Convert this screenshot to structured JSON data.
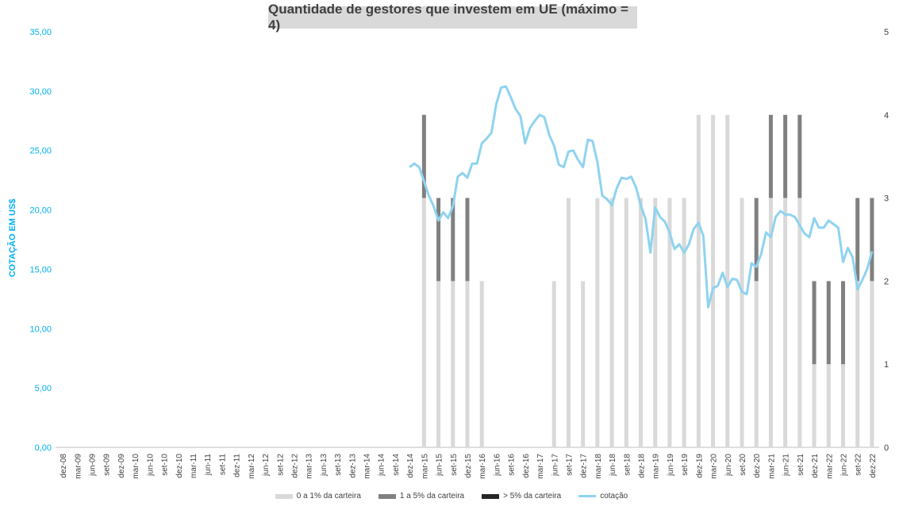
{
  "chart_data": {
    "type": "bar",
    "title": "Quantidade de gestores que investem em UE (máximo = 4)",
    "ylabel": "COTAÇÃO EM US$",
    "ylim_left": [
      0,
      35
    ],
    "ylim_right": [
      0,
      5
    ],
    "yticks_left": [
      "0,00",
      "5,00",
      "10,00",
      "15,00",
      "20,00",
      "25,00",
      "30,00",
      "35,00"
    ],
    "yticks_right": [
      "0",
      "1",
      "2",
      "3",
      "4",
      "5"
    ],
    "categories": [
      "dez-08",
      "mar-09",
      "jun-09",
      "set-09",
      "dez-09",
      "mar-10",
      "jun-10",
      "set-10",
      "dez-10",
      "mar-11",
      "jun-11",
      "set-11",
      "dez-11",
      "mar-12",
      "jun-12",
      "set-12",
      "dez-12",
      "mar-13",
      "jun-13",
      "set-13",
      "dez-13",
      "mar-14",
      "jun-14",
      "set-14",
      "dez-14",
      "mar-15",
      "jun-15",
      "set-15",
      "dez-15",
      "mar-16",
      "jun-16",
      "set-16",
      "dez-16",
      "mar-17",
      "jun-17",
      "set-17",
      "dez-17",
      "mar-18",
      "jun-18",
      "set-18",
      "dez-18",
      "mar-19",
      "jun-19",
      "set-19",
      "dez-19",
      "mar-20",
      "jun-20",
      "set-20",
      "dez-20",
      "mar-21",
      "jun-21",
      "set-21",
      "dez-21",
      "mar-22",
      "jun-22",
      "set-22",
      "dez-22"
    ],
    "series": [
      {
        "name": "0 a 1% da carteira",
        "color": "#d9d9d9",
        "values": [
          0,
          0,
          0,
          0,
          0,
          0,
          0,
          0,
          0,
          0,
          0,
          0,
          0,
          0,
          0,
          0,
          0,
          0,
          0,
          0,
          0,
          0,
          0,
          0,
          0,
          3,
          2,
          2,
          2,
          2,
          0,
          0,
          0,
          0,
          2,
          3,
          2,
          3,
          3,
          3,
          3,
          3,
          3,
          3,
          4,
          4,
          4,
          3,
          2,
          3,
          3,
          3,
          1,
          1,
          1,
          2,
          2
        ]
      },
      {
        "name": "1 a 5% da carteira",
        "color": "#808080",
        "values": [
          0,
          0,
          0,
          0,
          0,
          0,
          0,
          0,
          0,
          0,
          0,
          0,
          0,
          0,
          0,
          0,
          0,
          0,
          0,
          0,
          0,
          0,
          0,
          0,
          0,
          1,
          1,
          1,
          1,
          0,
          0,
          0,
          0,
          0,
          0,
          0,
          0,
          0,
          0,
          0,
          0,
          0,
          0,
          0,
          0,
          0,
          0,
          0,
          1,
          1,
          1,
          1,
          1,
          1,
          1,
          1,
          1
        ]
      },
      {
        "name": "> 5% da carteira",
        "color": "#262626",
        "values": [
          0,
          0,
          0,
          0,
          0,
          0,
          0,
          0,
          0,
          0,
          0,
          0,
          0,
          0,
          0,
          0,
          0,
          0,
          0,
          0,
          0,
          0,
          0,
          0,
          0,
          0,
          0,
          0,
          0,
          0,
          0,
          0,
          0,
          0,
          0,
          0,
          0,
          0,
          0,
          0,
          0,
          0,
          0,
          0,
          0,
          0,
          0,
          0,
          0,
          0,
          0,
          0,
          0,
          0,
          0,
          0,
          0
        ]
      }
    ],
    "line": {
      "name": "cotação",
      "color": "#8fd3f0",
      "x_start": 24,
      "step": 0.333333,
      "values": [
        23.6,
        23.9,
        23.6,
        22.4,
        21.2,
        20.3,
        19.1,
        19.8,
        19.3,
        20.3,
        22.8,
        23.1,
        22.7,
        23.9,
        23.9,
        25.6,
        26.0,
        26.5,
        28.9,
        30.3,
        30.4,
        29.5,
        28.5,
        27.9,
        25.6,
        26.9,
        27.5,
        28.0,
        27.8,
        26.3,
        25.4,
        23.8,
        23.6,
        24.9,
        25.0,
        24.2,
        23.6,
        25.9,
        25.8,
        24.0,
        21.2,
        20.9,
        20.4,
        21.8,
        22.7,
        22.6,
        22.8,
        21.9,
        20.4,
        19.2,
        16.4,
        20.2,
        19.4,
        19.0,
        18.1,
        16.7,
        17.1,
        16.4,
        17.1,
        18.4,
        18.9,
        17.8,
        11.8,
        13.4,
        13.6,
        14.7,
        13.5,
        14.2,
        14.1,
        13.1,
        12.9,
        15.5,
        15.2,
        16.3,
        18.1,
        17.7,
        19.4,
        19.9,
        19.6,
        19.6,
        19.4,
        18.7,
        18.0,
        17.7,
        19.3,
        18.5,
        18.5,
        19.1,
        18.8,
        18.5,
        15.6,
        16.8,
        16.0,
        13.3,
        14.1,
        15.0,
        16.5
      ]
    },
    "legend_position": "bottom"
  }
}
